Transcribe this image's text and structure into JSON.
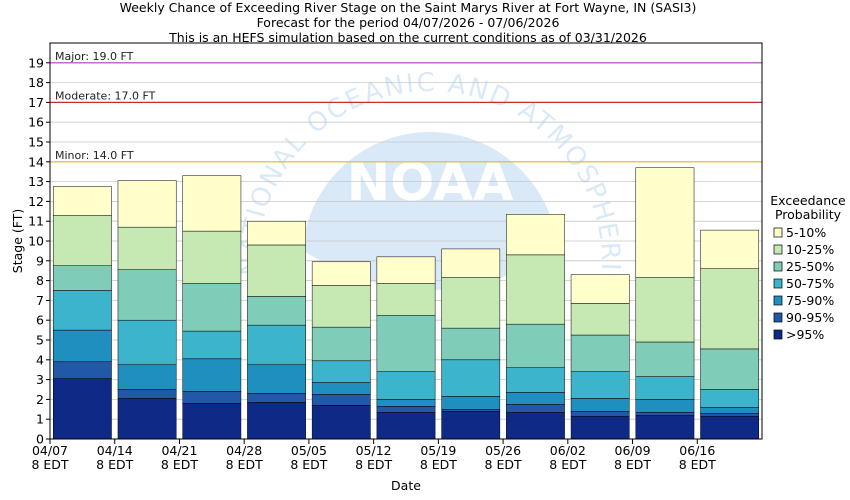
{
  "chart_data": {
    "type": "bar",
    "stacked": true,
    "title_lines": [
      "Weekly Chance of Exceeding River Stage on the Saint Marys River at Fort Wayne, IN (SASI3)",
      "Forecast for the period 04/07/2026 - 07/06/2026",
      "This is an HEFS simulation based on the current conditions as of 03/31/2026"
    ],
    "xlabel": "Date",
    "ylabel": "Stage (FT)",
    "ylim": [
      0,
      20
    ],
    "yticks": [
      0,
      1,
      2,
      3,
      4,
      5,
      6,
      7,
      8,
      9,
      10,
      11,
      12,
      13,
      14,
      15,
      16,
      17,
      18,
      19
    ],
    "x_ticks": [
      {
        "date": "04/07",
        "time": "8 EDT"
      },
      {
        "date": "04/14",
        "time": "8 EDT"
      },
      {
        "date": "04/21",
        "time": "8 EDT"
      },
      {
        "date": "04/28",
        "time": "8 EDT"
      },
      {
        "date": "05/05",
        "time": "8 EDT"
      },
      {
        "date": "05/12",
        "time": "8 EDT"
      },
      {
        "date": "05/19",
        "time": "8 EDT"
      },
      {
        "date": "05/26",
        "time": "8 EDT"
      },
      {
        "date": "06/02",
        "time": "8 EDT"
      },
      {
        "date": "06/09",
        "time": "8 EDT"
      },
      {
        "date": "06/16",
        "time": "8 EDT"
      }
    ],
    "thresholds": [
      {
        "label": "Major: 19.0 FT",
        "value": 19.0,
        "color": "#b040c0"
      },
      {
        "label": "Moderate: 17.0 FT",
        "value": 17.0,
        "color": "#c03030"
      },
      {
        "label": "Minor: 14.0 FT",
        "value": 14.0,
        "color": "#d8c030"
      }
    ],
    "legend_title": [
      "Exceedance",
      "Probability"
    ],
    "legend_position": "right",
    "series": [
      {
        "name": ">95%",
        "color": "#0f2a86"
      },
      {
        "name": "90-95%",
        "color": "#2258a8"
      },
      {
        "name": "75-90%",
        "color": "#1f8fbf"
      },
      {
        "name": "50-75%",
        "color": "#3cb4cc"
      },
      {
        "name": "25-50%",
        "color": "#7fcdb8"
      },
      {
        "name": "10-25%",
        "color": "#c6e9b4"
      },
      {
        "name": "5-10%",
        "color": "#ffffcc"
      }
    ],
    "weeks": [
      {
        "start": "04/07",
        "stages": [
          3.05,
          3.9,
          5.5,
          7.5,
          8.75,
          11.3,
          12.75
        ]
      },
      {
        "start": "04/14",
        "stages": [
          2.05,
          2.5,
          3.75,
          6.0,
          8.55,
          10.7,
          13.05
        ]
      },
      {
        "start": "04/21",
        "stages": [
          1.8,
          2.4,
          4.05,
          5.45,
          7.85,
          10.5,
          13.3
        ]
      },
      {
        "start": "04/28",
        "stages": [
          1.85,
          2.3,
          3.75,
          5.75,
          7.2,
          9.8,
          11.0
        ]
      },
      {
        "start": "05/05",
        "stages": [
          1.7,
          2.25,
          2.85,
          3.95,
          5.65,
          7.75,
          8.95
        ]
      },
      {
        "start": "05/12",
        "stages": [
          1.35,
          1.65,
          2.0,
          3.4,
          6.25,
          7.85,
          9.2
        ]
      },
      {
        "start": "05/19",
        "stages": [
          1.4,
          1.5,
          2.15,
          4.0,
          5.6,
          8.15,
          9.6
        ]
      },
      {
        "start": "05/26",
        "stages": [
          1.35,
          1.75,
          2.35,
          3.6,
          5.8,
          9.3,
          11.35
        ]
      },
      {
        "start": "06/02",
        "stages": [
          1.15,
          1.4,
          2.05,
          3.4,
          5.25,
          6.85,
          8.3
        ]
      },
      {
        "start": "06/09",
        "stages": [
          1.2,
          1.35,
          2.0,
          3.15,
          4.9,
          8.15,
          13.7
        ]
      },
      {
        "start": "06/16",
        "stages": [
          1.15,
          1.3,
          1.6,
          2.5,
          4.55,
          8.6,
          10.55
        ]
      }
    ],
    "grid": true,
    "watermark_text": "NATIONAL OCEANIC AND ATMOSPHERIC ADMINISTRATION",
    "watermark_logo": "NOAA"
  }
}
